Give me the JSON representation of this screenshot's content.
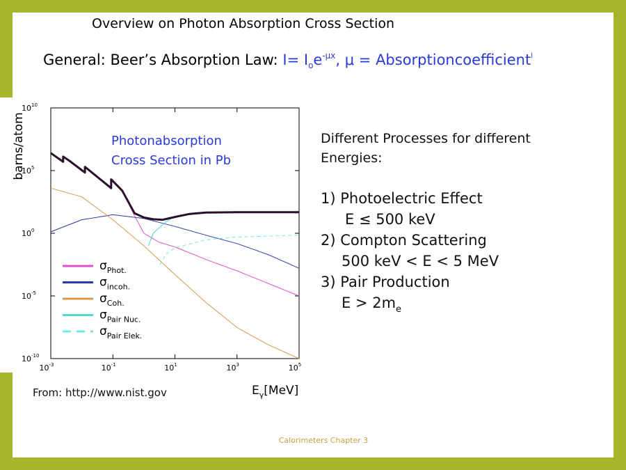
{
  "slide": {
    "title": "Overview on Photon Absorption Cross Section",
    "law_prefix": "General: Beer’s Absorption Law: ",
    "law_parts": [
      "I= I",
      "o",
      "e",
      "-μx",
      ",   μ = Absorptioncoefficient",
      "l"
    ],
    "right_lines": [
      "Different Processes for different",
      "Energies:",
      "1) Photoelectric Effect",
      "E ≤ 500 keV",
      "2) Compton Scattering",
      "500 keV < E < 5 MeV",
      "3) Pair Production"
    ],
    "pair_condition": [
      "E > 2m",
      "e"
    ],
    "source": "From: http://www.nist.gov",
    "footer": "Calorimeters Chapter 3"
  },
  "chart_data": {
    "type": "line",
    "title_lines": [
      "Photonabsorption",
      "Cross Section in Pb"
    ],
    "y_label": "barns/atom",
    "x_label_parts": [
      "E",
      "γ",
      "[MeV]"
    ],
    "x_log": true,
    "y_log": true,
    "xlim": [
      0.001,
      100000
    ],
    "ylim": [
      1e-10,
      10000000000
    ],
    "xticks": [
      {
        "value": 0.001,
        "label": "10",
        "exp": "-3"
      },
      {
        "value": 0.1,
        "label": "10",
        "exp": "-1"
      },
      {
        "value": 10,
        "label": "10",
        "exp": "1"
      },
      {
        "value": 1000,
        "label": "10",
        "exp": "3"
      },
      {
        "value": 100000,
        "label": "10",
        "exp": "5"
      }
    ],
    "yticks": [
      {
        "value": 1e-10,
        "label": "10",
        "exp": "-10"
      },
      {
        "value": 1e-05,
        "label": "10",
        "exp": "-5"
      },
      {
        "value": 1,
        "label": "10",
        "exp": "0"
      },
      {
        "value": 100000,
        "label": "10",
        "exp": "5"
      },
      {
        "value": 10000000000,
        "label": "10",
        "exp": "10"
      }
    ],
    "series": [
      {
        "name": "σ",
        "name_sub": "Phot.",
        "color": "#e050c8",
        "width": 1,
        "x": [
          0.001,
          0.0025,
          0.0025,
          0.004,
          0.0126,
          0.0126,
          0.088,
          0.088,
          0.2,
          0.5,
          1,
          3,
          10,
          100,
          1000,
          10000,
          100000
        ],
        "values": [
          2500000,
          500000,
          1300000,
          600000,
          70000,
          200000,
          4000,
          20000,
          2500,
          25,
          1,
          0.2,
          0.08,
          0.008,
          0.001,
          0.0001,
          1e-05
        ]
      },
      {
        "name": "σ",
        "name_sub": "incoh.",
        "color": "#2a3aaa",
        "width": 1,
        "x": [
          0.001,
          0.01,
          0.1,
          1,
          10,
          100,
          1000,
          10000,
          100000
        ],
        "values": [
          1.3,
          12,
          30,
          15,
          3.5,
          0.7,
          0.15,
          0.02,
          0.0016
        ]
      },
      {
        "name": "σ",
        "name_sub": "Coh.",
        "color": "#d89848",
        "width": 1,
        "x": [
          0.001,
          0.01,
          0.1,
          1,
          10,
          100,
          1000,
          10000,
          100000
        ],
        "values": [
          4000,
          800,
          12,
          0.1,
          0.0005,
          3e-06,
          3e-08,
          1.3e-09,
          1e-10
        ]
      },
      {
        "name": "σ",
        "name_sub": "Pair Nuc.",
        "color": "#50d8c8",
        "width": 1,
        "x": [
          1.4,
          2,
          5,
          10,
          100,
          1000,
          100000
        ],
        "values": [
          0.1,
          1,
          8,
          22,
          42,
          47,
          48
        ]
      },
      {
        "name": "σ",
        "name_sub": "Pair Elek.",
        "color": "#70e8e0",
        "width": 1,
        "dashed": true,
        "x": [
          3.3,
          5,
          10,
          100,
          1000,
          100000
        ],
        "values": [
          0.003,
          0.02,
          0.07,
          0.3,
          0.5,
          0.7
        ]
      },
      {
        "color": "#2a102a",
        "width": 3,
        "x": [
          0.001,
          0.0025,
          0.0025,
          0.004,
          0.0126,
          0.0126,
          0.088,
          0.088,
          0.2,
          0.5,
          1,
          2,
          4,
          10,
          30,
          100,
          1000,
          100000
        ],
        "values": [
          2500000,
          500000,
          1300000,
          600000,
          70000,
          200000,
          4000,
          20000,
          2500,
          40,
          18,
          13,
          12,
          20,
          35,
          45,
          48,
          48
        ]
      }
    ]
  }
}
